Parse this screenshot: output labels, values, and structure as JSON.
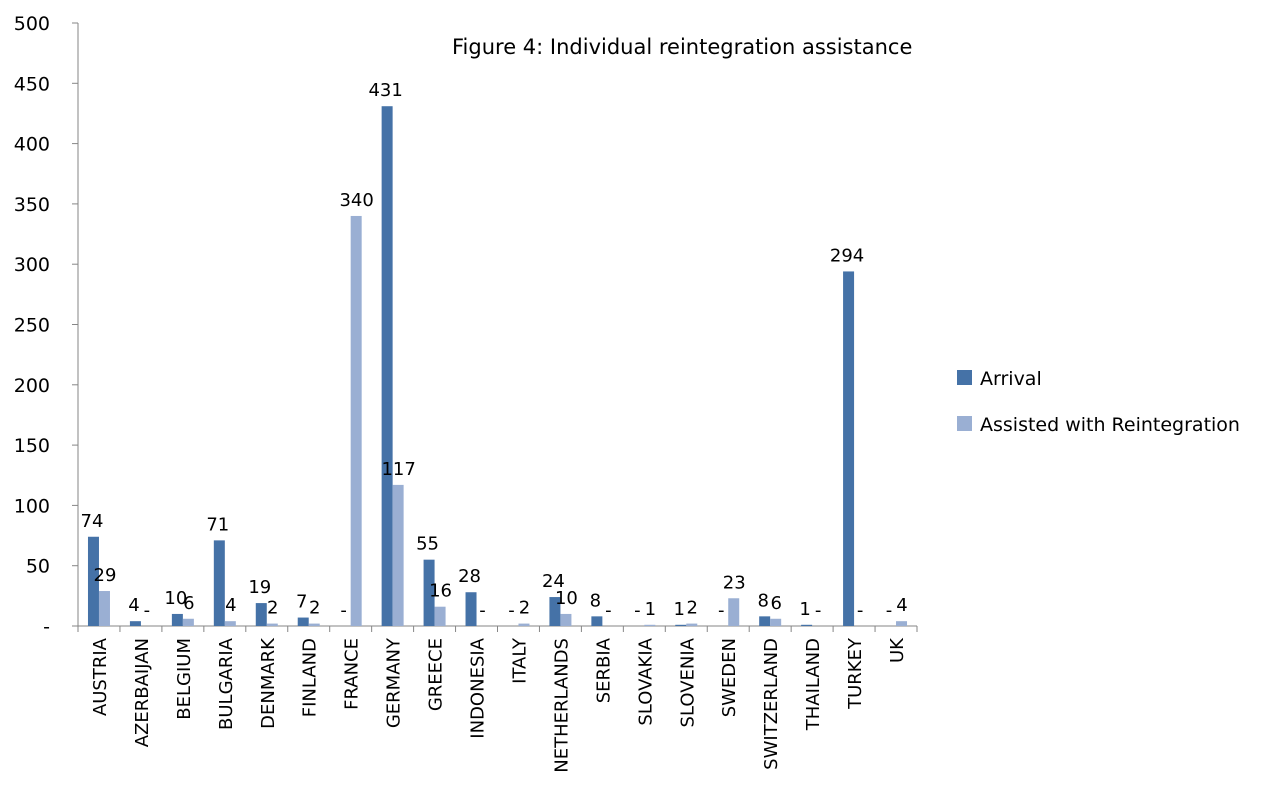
{
  "chart_data": {
    "type": "bar",
    "title": "Figure 4: Individual reintegration assistance",
    "xlabel": "",
    "ylabel": "",
    "ylim": [
      0,
      500
    ],
    "yticks": [
      0,
      50,
      100,
      150,
      200,
      250,
      300,
      350,
      400,
      450,
      500
    ],
    "ytick_labels": [
      "-",
      "50",
      "100",
      "150",
      "200",
      "250",
      "300",
      "350",
      "400",
      "450",
      "500"
    ],
    "grid": false,
    "legend_position": "right",
    "categories": [
      "AUSTRIA",
      "AZERBAIJAN",
      "BELGIUM",
      "BULGARIA",
      "DENMARK",
      "FINLAND",
      "FRANCE",
      "GERMANY",
      "GREECE",
      "INDONESIA",
      "ITALY",
      "NETHERLANDS",
      "SERBIA",
      "SLOVAKIA",
      "SLOVENIA",
      "SWEDEN",
      "SWITZERLAND",
      "THAILAND",
      "TURKEY",
      "UK"
    ],
    "series": [
      {
        "name": "Arrival",
        "color": "#4572a7",
        "values": [
          74,
          4,
          10,
          71,
          19,
          7,
          0,
          431,
          55,
          28,
          0,
          24,
          8,
          0,
          1,
          0,
          8,
          1,
          294,
          0
        ],
        "labels": [
          "74",
          "4",
          "10",
          "71",
          "19",
          "7",
          "-",
          "431",
          "55",
          "28",
          "-",
          "24",
          "8",
          "-",
          "1",
          "-",
          "8",
          "1",
          "294",
          "-"
        ]
      },
      {
        "name": "Assisted with Reintegration",
        "color": "#9aafd3",
        "values": [
          29,
          0,
          6,
          4,
          2,
          2,
          340,
          117,
          16,
          0,
          2,
          10,
          0,
          1,
          2,
          23,
          6,
          0,
          0,
          4
        ],
        "labels": [
          "29",
          "-",
          "6",
          "4",
          "2",
          "2",
          "340",
          "117",
          "16",
          "-",
          "2",
          "10",
          "-",
          "1",
          "2",
          "23",
          "6",
          "-",
          "-",
          "4"
        ]
      }
    ]
  }
}
